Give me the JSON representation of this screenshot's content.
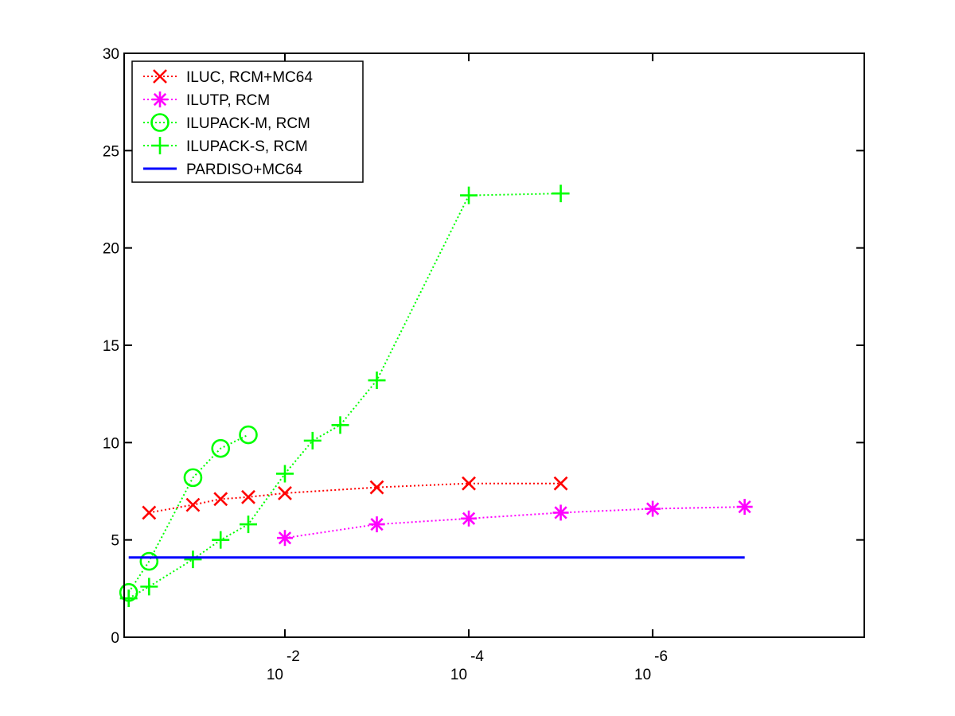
{
  "chart_data": {
    "type": "line",
    "title": "",
    "xlabel": "",
    "ylabel": "",
    "x_scale": "log-reversed",
    "xlim": [
      0.56,
      5e-09
    ],
    "ylim": [
      0,
      30
    ],
    "y_ticks": [
      "0",
      "5",
      "10",
      "15",
      "20",
      "25",
      "30"
    ],
    "x_ticks": [
      {
        "value": 0.01,
        "base": "10",
        "exp": "-2"
      },
      {
        "value": 0.0001,
        "base": "10",
        "exp": "-4"
      },
      {
        "value": 1e-06,
        "base": "10",
        "exp": "-6"
      }
    ],
    "grid": false,
    "legend_position": "top-left",
    "series": [
      {
        "name": "ILUC, RCM+MC64",
        "color": "#ff0000",
        "marker": "x",
        "line": "dotted",
        "x": [
          0.3,
          0.1,
          0.05,
          0.025,
          0.01,
          0.001,
          0.0001,
          1e-05
        ],
        "y": [
          6.4,
          6.8,
          7.1,
          7.2,
          7.4,
          7.7,
          7.9,
          7.9
        ]
      },
      {
        "name": "ILUTP, RCM",
        "color": "#ff00ff",
        "marker": "asterisk",
        "line": "dotted",
        "x": [
          0.01,
          0.001,
          0.0001,
          1e-05,
          1e-06,
          1e-07
        ],
        "y": [
          5.1,
          5.8,
          6.1,
          6.4,
          6.6,
          6.7
        ]
      },
      {
        "name": "ILUPACK-M, RCM",
        "color": "#00ff00",
        "marker": "circle",
        "line": "dotted",
        "x": [
          0.5,
          0.3,
          0.1,
          0.05,
          0.025
        ],
        "y": [
          2.3,
          3.9,
          8.2,
          9.7,
          10.4
        ]
      },
      {
        "name": "ILUPACK-S, RCM",
        "color": "#00ff00",
        "marker": "plus",
        "line": "dotted",
        "x": [
          0.5,
          0.3,
          0.1,
          0.05,
          0.025,
          0.01,
          0.005,
          0.0025,
          0.001,
          0.0001,
          1e-05
        ],
        "y": [
          2.0,
          2.6,
          4.0,
          5.0,
          5.8,
          8.4,
          10.1,
          10.9,
          13.2,
          22.7,
          22.8
        ]
      },
      {
        "name": "PARDISO+MC64",
        "color": "#0000ff",
        "marker": "none",
        "line": "solid",
        "x": [
          0.5,
          1e-07
        ],
        "y": [
          4.1,
          4.1
        ]
      }
    ]
  }
}
